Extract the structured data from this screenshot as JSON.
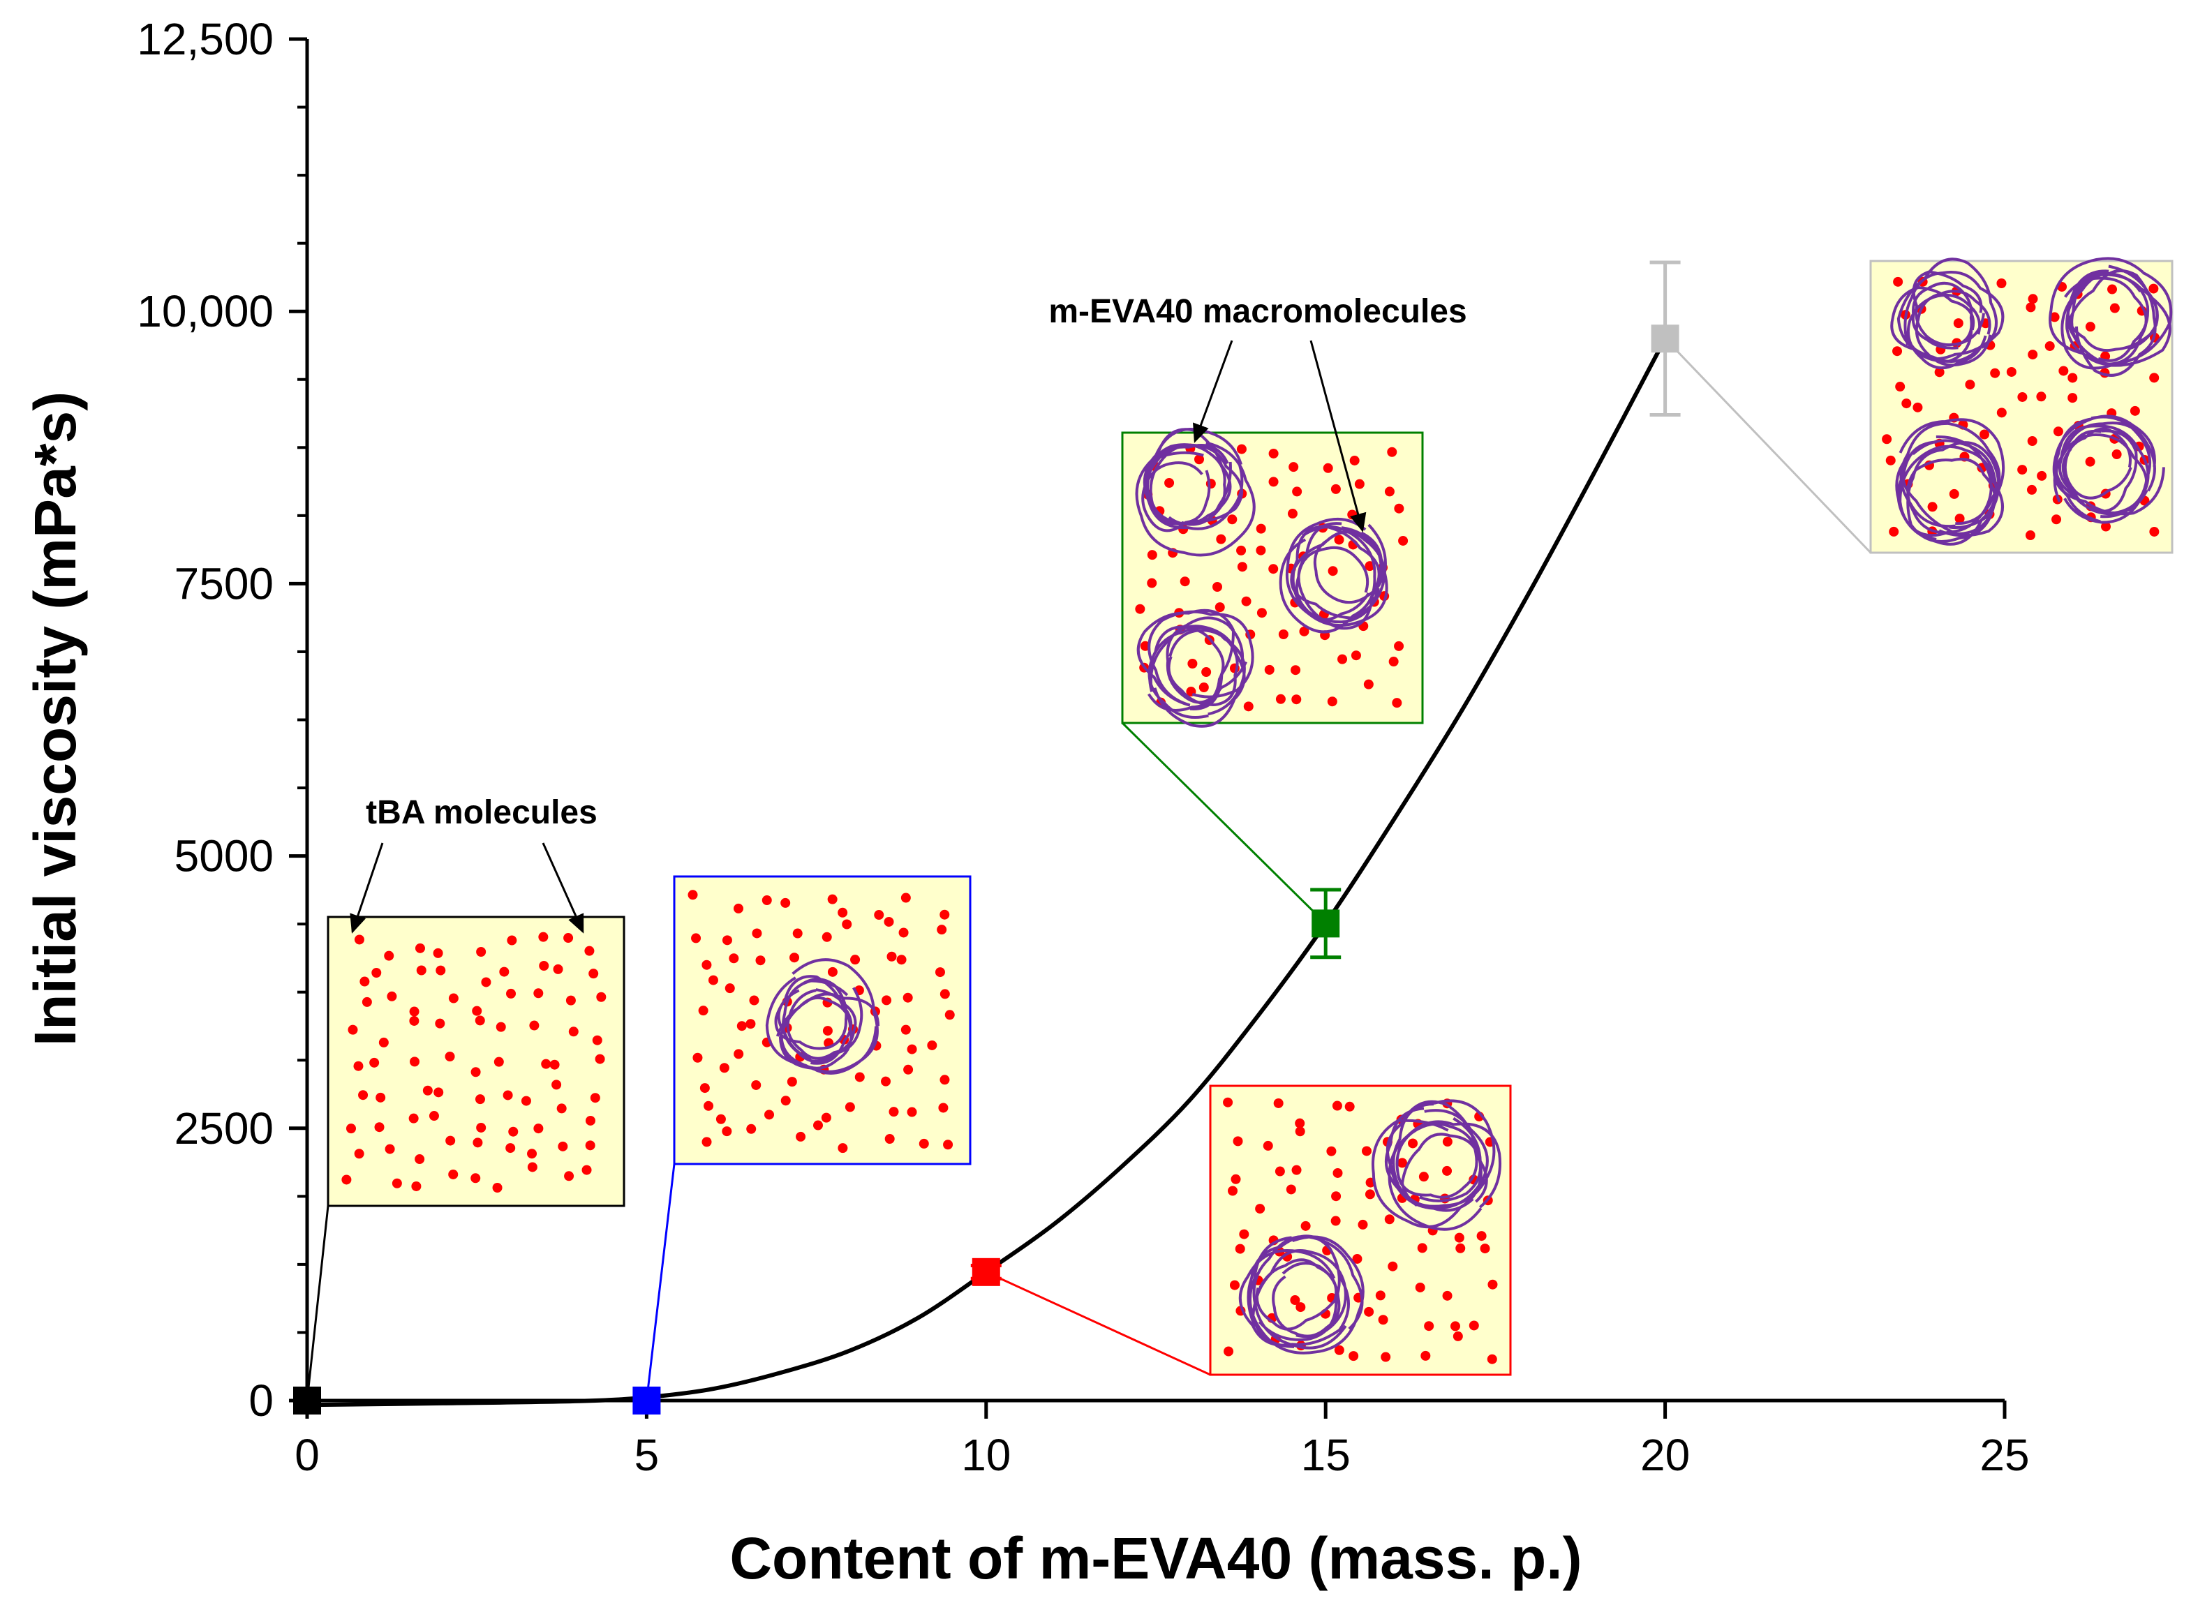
{
  "chart_data": {
    "type": "scatter",
    "title": "",
    "xlabel": "Content of m-EVA40 (mass. p.)",
    "ylabel": "Initial viscosity (mPa*s)",
    "xlim": [
      0,
      25
    ],
    "ylim": [
      0,
      12500
    ],
    "x_ticks": [
      0,
      5,
      10,
      15,
      20,
      25
    ],
    "x_tick_labels": [
      "0",
      "5",
      "10",
      "15",
      "20",
      "25"
    ],
    "y_ticks": [
      0,
      2500,
      5000,
      7500,
      10000,
      12500
    ],
    "y_tick_labels": [
      "0",
      "2500",
      "5000",
      "7500",
      "10,000",
      "12,500"
    ],
    "grid": false,
    "legend": "none",
    "points": [
      {
        "x": 0,
        "y": 0,
        "err": 0,
        "color": "#000000"
      },
      {
        "x": 5,
        "y": 0,
        "err": 0,
        "color": "#0000ff"
      },
      {
        "x": 10,
        "y": 1180,
        "err": 60,
        "color": "#ff0000"
      },
      {
        "x": 15,
        "y": 4380,
        "err": 310,
        "color": "#008000"
      },
      {
        "x": 20,
        "y": 9750,
        "err": 700,
        "color": "#c0c0c0"
      }
    ],
    "fit_curve": {
      "color": "#000000",
      "x": [
        0,
        2,
        4,
        5,
        6,
        7,
        8,
        9,
        10,
        11,
        12,
        13,
        14,
        15,
        16,
        17,
        18,
        19,
        20
      ],
      "y": [
        -40,
        -25,
        -5,
        30,
        110,
        260,
        460,
        760,
        1180,
        1620,
        2150,
        2760,
        3530,
        4380,
        5330,
        6330,
        7420,
        8570,
        9750
      ]
    },
    "annotations": [
      {
        "text": "tBA molecules"
      },
      {
        "text": "m-EVA40 macromolecules"
      }
    ],
    "insets": [
      {
        "point": 0,
        "color": "#000000",
        "fill": "#ffffcc",
        "coils": 0
      },
      {
        "point": 5,
        "color": "#0000ff",
        "fill": "#ffffcc",
        "coils": 1
      },
      {
        "point": 10,
        "color": "#ff0000",
        "fill": "#ffffcc",
        "coils": 2
      },
      {
        "point": 15,
        "color": "#008000",
        "fill": "#ffffcc",
        "coils": 3
      },
      {
        "point": 20,
        "color": "#c0c0c0",
        "fill": "#ffffcc",
        "coils": 4
      }
    ],
    "molecule_color": "#ff0000",
    "coil_color": "#7030a0"
  }
}
